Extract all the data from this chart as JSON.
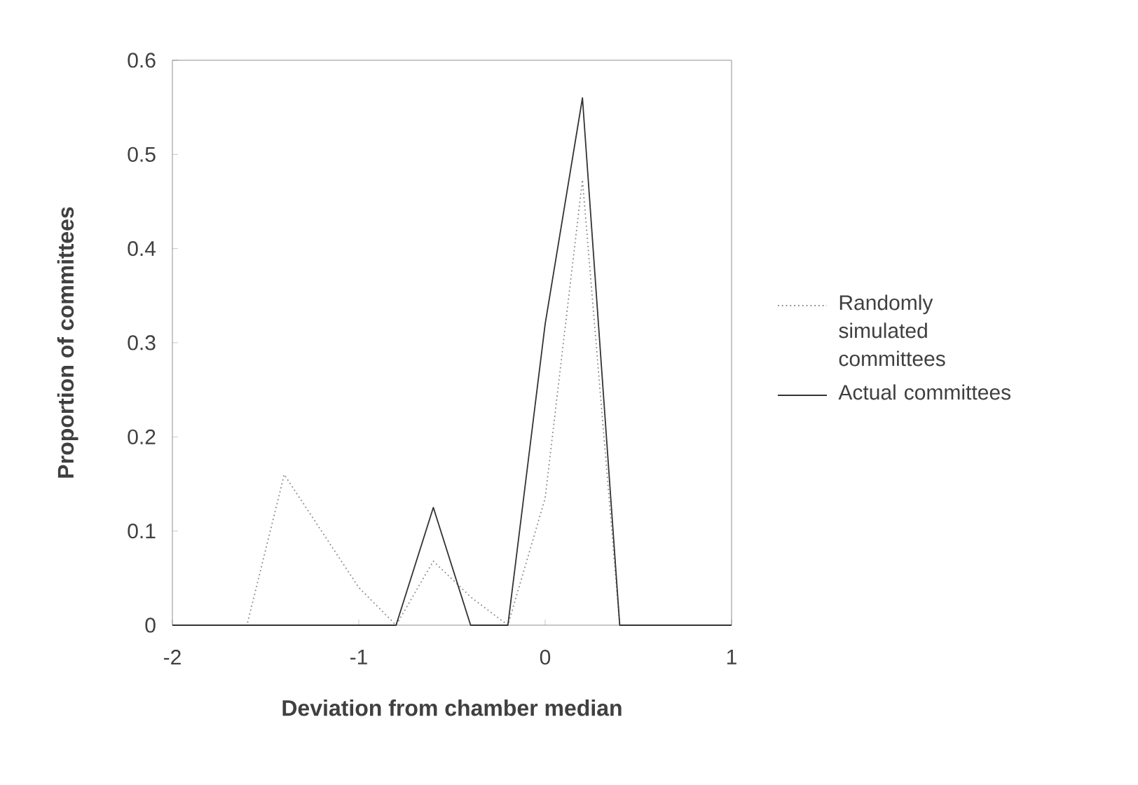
{
  "chart_data": {
    "type": "line",
    "xlabel": "Deviation from chamber median",
    "ylabel": "Proportion of committees",
    "x": [
      -2,
      -1.8,
      -1.6,
      -1.4,
      -1.2,
      -1.0,
      -0.8,
      -0.6,
      -0.4,
      -0.2,
      0,
      0.2,
      0.4,
      0.6,
      0.8,
      1.0
    ],
    "series": [
      {
        "name": "Randomly simulated committees",
        "color": "#8a8a8a",
        "line_style": "dotted",
        "values": [
          0,
          0,
          0,
          0.16,
          0.1,
          0.04,
          0,
          0.068,
          0.03,
          0,
          0.135,
          0.473,
          0,
          0,
          0,
          0
        ]
      },
      {
        "name": "Actual committees",
        "color": "#333333",
        "line_style": "solid",
        "values": [
          0,
          0,
          0,
          0,
          0,
          0,
          0,
          0.125,
          0,
          0,
          0.32,
          0.56,
          0,
          0,
          0,
          0
        ]
      }
    ],
    "xlim": [
      -2,
      1
    ],
    "ylim": [
      0,
      0.6
    ],
    "xticks": [
      -2,
      -1,
      0,
      1
    ],
    "yticks": [
      0,
      0.1,
      0.2,
      0.3,
      0.4,
      0.5,
      0.6
    ],
    "grid": false,
    "legend": "right",
    "marker": "none"
  }
}
